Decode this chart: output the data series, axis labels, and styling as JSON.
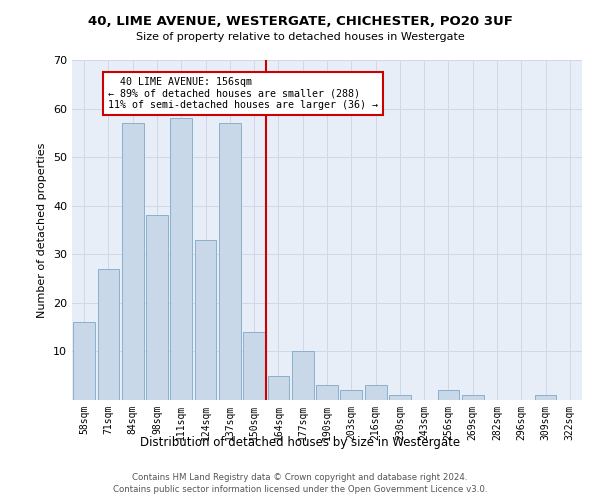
{
  "title": "40, LIME AVENUE, WESTERGATE, CHICHESTER, PO20 3UF",
  "subtitle": "Size of property relative to detached houses in Westergate",
  "xlabel": "Distribution of detached houses by size in Westergate",
  "ylabel": "Number of detached properties",
  "categories": [
    "58sqm",
    "71sqm",
    "84sqm",
    "98sqm",
    "111sqm",
    "124sqm",
    "137sqm",
    "150sqm",
    "164sqm",
    "177sqm",
    "190sqm",
    "203sqm",
    "216sqm",
    "230sqm",
    "243sqm",
    "256sqm",
    "269sqm",
    "282sqm",
    "296sqm",
    "309sqm",
    "322sqm"
  ],
  "values": [
    16,
    27,
    57,
    38,
    58,
    33,
    57,
    14,
    5,
    10,
    3,
    2,
    3,
    1,
    0,
    2,
    1,
    0,
    0,
    1,
    0
  ],
  "bar_color": "#c8d8e8",
  "bar_edge_color": "#8ab0cc",
  "vline_x_index": 7.5,
  "vline_color": "#cc0000",
  "annotation_line1": "  40 LIME AVENUE: 156sqm",
  "annotation_line2": "← 89% of detached houses are smaller (288)",
  "annotation_line3": "11% of semi-detached houses are larger (36) →",
  "annotation_box_color": "#cc0000",
  "ylim": [
    0,
    70
  ],
  "yticks": [
    0,
    10,
    20,
    30,
    40,
    50,
    60,
    70
  ],
  "grid_color": "#d0d8e8",
  "bg_color": "#e8eef8",
  "footer1": "Contains HM Land Registry data © Crown copyright and database right 2024.",
  "footer2": "Contains public sector information licensed under the Open Government Licence v3.0."
}
